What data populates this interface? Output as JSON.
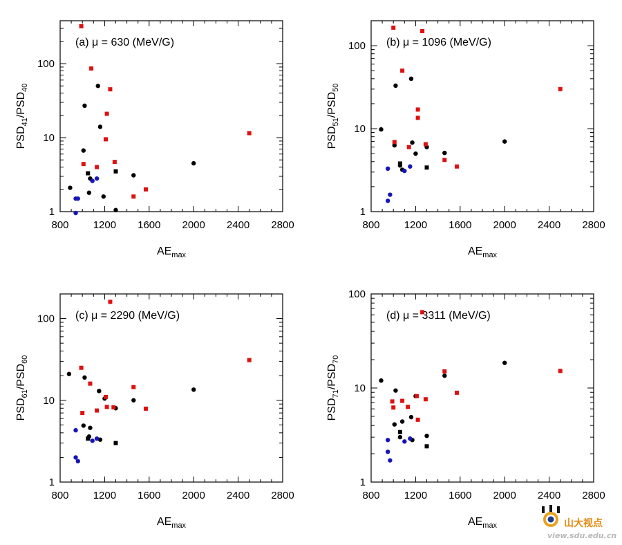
{
  "figure": {
    "watermark": {
      "logo_text": "山大视点",
      "url": "view.sdu.edu.cn"
    }
  },
  "colors": {
    "black": "#000000",
    "red": "#dd1111",
    "blue": "#1515b8",
    "axis": "#000000"
  },
  "chart_data": [
    {
      "panel_label": "(a)",
      "title": "(a)  μ = 630 (MeV/G)",
      "type": "scatter",
      "xscale": "linear",
      "yscale": "log",
      "xlim": [
        800,
        2800
      ],
      "ylim": [
        1,
        380
      ],
      "xticks": [
        800,
        1200,
        1600,
        2000,
        2400,
        2800
      ],
      "yticks": [
        1,
        10,
        100
      ],
      "xlabel": "AE",
      "xlabel_sub": "max",
      "ylabel": "PSD",
      "ylabel_sub1": "41",
      "ylabel_sep": "/PSD",
      "ylabel_sub2": "40",
      "grid": false,
      "series": [
        {
          "color": "black",
          "marker": "circle",
          "points": [
            [
              890,
              2.1
            ],
            [
              1010,
              6.7
            ],
            [
              1020,
              27
            ],
            [
              1060,
              1.8
            ],
            [
              1070,
              2.8
            ],
            [
              1140,
              50
            ],
            [
              1160,
              14
            ],
            [
              1190,
              1.6
            ],
            [
              1460,
              3.1
            ],
            [
              2000,
              4.5
            ],
            [
              1300,
              1.05
            ]
          ]
        },
        {
          "color": "black",
          "marker": "square",
          "points": [
            [
              1050,
              3.3
            ],
            [
              1300,
              3.5
            ]
          ]
        },
        {
          "color": "red",
          "marker": "square",
          "points": [
            [
              990,
              320
            ],
            [
              1010,
              4.4
            ],
            [
              1080,
              86
            ],
            [
              1130,
              4.0
            ],
            [
              1210,
              9.5
            ],
            [
              1220,
              21
            ],
            [
              1250,
              45
            ],
            [
              1290,
              4.7
            ],
            [
              1460,
              1.6
            ],
            [
              1570,
              2.0
            ],
            [
              2500,
              11.5
            ]
          ]
        },
        {
          "color": "blue",
          "marker": "circle",
          "points": [
            [
              940,
              1.5
            ],
            [
              960,
              1.5
            ],
            [
              940,
              0.95
            ],
            [
              1090,
              2.6
            ],
            [
              1130,
              2.8
            ]
          ]
        }
      ]
    },
    {
      "panel_label": "(b)",
      "title": "(b)  μ = 1096 (MeV/G)",
      "type": "scatter",
      "xscale": "linear",
      "yscale": "log",
      "xlim": [
        800,
        2800
      ],
      "ylim": [
        1,
        200
      ],
      "xticks": [
        800,
        1200,
        1600,
        2000,
        2400,
        2800
      ],
      "yticks": [
        1,
        10,
        100
      ],
      "xlabel": "AE",
      "xlabel_sub": "max",
      "ylabel": "PSD",
      "ylabel_sub1": "51",
      "ylabel_sep": "/PSD",
      "ylabel_sub2": "50",
      "grid": false,
      "series": [
        {
          "color": "black",
          "marker": "circle",
          "points": [
            [
              890,
              9.8
            ],
            [
              1010,
              6.3
            ],
            [
              1020,
              33
            ],
            [
              1060,
              3.6
            ],
            [
              1080,
              3.2
            ],
            [
              1160,
              40
            ],
            [
              1170,
              6.8
            ],
            [
              1200,
              5.0
            ],
            [
              1300,
              6.0
            ],
            [
              1460,
              5.1
            ],
            [
              2000,
              7.0
            ]
          ]
        },
        {
          "color": "black",
          "marker": "square",
          "points": [
            [
              1060,
              3.8
            ],
            [
              1300,
              3.4
            ]
          ]
        },
        {
          "color": "red",
          "marker": "square",
          "points": [
            [
              1000,
              165
            ],
            [
              1010,
              6.9
            ],
            [
              1080,
              50
            ],
            [
              1140,
              6.0
            ],
            [
              1220,
              17
            ],
            [
              1220,
              13.5
            ],
            [
              1260,
              150
            ],
            [
              1290,
              6.5
            ],
            [
              1460,
              4.2
            ],
            [
              1570,
              3.5
            ],
            [
              2500,
              30
            ]
          ]
        },
        {
          "color": "blue",
          "marker": "circle",
          "points": [
            [
              950,
              3.3
            ],
            [
              970,
              1.6
            ],
            [
              950,
              1.35
            ],
            [
              1100,
              3.1
            ],
            [
              1150,
              3.5
            ]
          ]
        }
      ]
    },
    {
      "panel_label": "(c)",
      "title": "(c)  μ = 2290 (MeV/G)",
      "type": "scatter",
      "xscale": "linear",
      "yscale": "log",
      "xlim": [
        800,
        2800
      ],
      "ylim": [
        1,
        200
      ],
      "xticks": [
        800,
        1200,
        1600,
        2000,
        2400,
        2800
      ],
      "yticks": [
        1,
        10,
        100
      ],
      "xlabel": "AE",
      "xlabel_sub": "max",
      "ylabel": "PSD",
      "ylabel_sub1": "61",
      "ylabel_sep": "/PSD",
      "ylabel_sub2": "60",
      "grid": false,
      "series": [
        {
          "color": "black",
          "marker": "circle",
          "points": [
            [
              880,
              21
            ],
            [
              1010,
              4.9
            ],
            [
              1020,
              19
            ],
            [
              1060,
              3.6
            ],
            [
              1070,
              4.6
            ],
            [
              1150,
              13
            ],
            [
              1160,
              3.3
            ],
            [
              1200,
              10.5
            ],
            [
              1300,
              8.0
            ],
            [
              1460,
              10
            ],
            [
              2000,
              13.5
            ]
          ]
        },
        {
          "color": "black",
          "marker": "square",
          "points": [
            [
              1050,
              3.4
            ],
            [
              1300,
              3.0
            ]
          ]
        },
        {
          "color": "red",
          "marker": "square",
          "points": [
            [
              990,
              25
            ],
            [
              1000,
              7.0
            ],
            [
              1070,
              16
            ],
            [
              1130,
              7.5
            ],
            [
              1210,
              11
            ],
            [
              1220,
              8.3
            ],
            [
              1250,
              160
            ],
            [
              1280,
              8.2
            ],
            [
              1460,
              14.5
            ],
            [
              1570,
              7.9
            ],
            [
              2500,
              31
            ]
          ]
        },
        {
          "color": "blue",
          "marker": "circle",
          "points": [
            [
              940,
              4.3
            ],
            [
              960,
              1.8
            ],
            [
              940,
              2.0
            ],
            [
              1090,
              3.2
            ],
            [
              1130,
              3.4
            ]
          ]
        }
      ]
    },
    {
      "panel_label": "(d)",
      "title": "(d)  μ = 3311 (MeV/G)",
      "type": "scatter",
      "xscale": "linear",
      "yscale": "log",
      "xlim": [
        800,
        2800
      ],
      "ylim": [
        1,
        100
      ],
      "xticks": [
        800,
        1200,
        1600,
        2000,
        2400,
        2800
      ],
      "yticks": [
        1,
        10,
        100
      ],
      "xlabel": "AE",
      "xlabel_sub": "max",
      "ylabel": "PSD",
      "ylabel_sub1": "71",
      "ylabel_sep": "/PSD",
      "ylabel_sub2": "70",
      "grid": false,
      "series": [
        {
          "color": "black",
          "marker": "circle",
          "points": [
            [
              890,
              12
            ],
            [
              1010,
              4.1
            ],
            [
              1020,
              9.4
            ],
            [
              1060,
              3.0
            ],
            [
              1080,
              4.4
            ],
            [
              1160,
              4.9
            ],
            [
              1170,
              2.8
            ],
            [
              1200,
              8.2
            ],
            [
              1300,
              3.1
            ],
            [
              1460,
              13.5
            ],
            [
              2000,
              18.5
            ]
          ]
        },
        {
          "color": "black",
          "marker": "square",
          "points": [
            [
              1060,
              3.4
            ],
            [
              1300,
              2.4
            ]
          ]
        },
        {
          "color": "red",
          "marker": "square",
          "points": [
            [
              990,
              7.2
            ],
            [
              1000,
              6.2
            ],
            [
              1080,
              7.3
            ],
            [
              1130,
              6.3
            ],
            [
              1210,
              8.2
            ],
            [
              1220,
              4.6
            ],
            [
              1260,
              64
            ],
            [
              1290,
              7.6
            ],
            [
              1460,
              15
            ],
            [
              1570,
              8.9
            ],
            [
              2500,
              15.2
            ]
          ]
        },
        {
          "color": "blue",
          "marker": "circle",
          "points": [
            [
              950,
              2.8
            ],
            [
              970,
              1.7
            ],
            [
              950,
              2.1
            ],
            [
              1100,
              2.7
            ],
            [
              1150,
              2.9
            ]
          ]
        }
      ]
    }
  ]
}
